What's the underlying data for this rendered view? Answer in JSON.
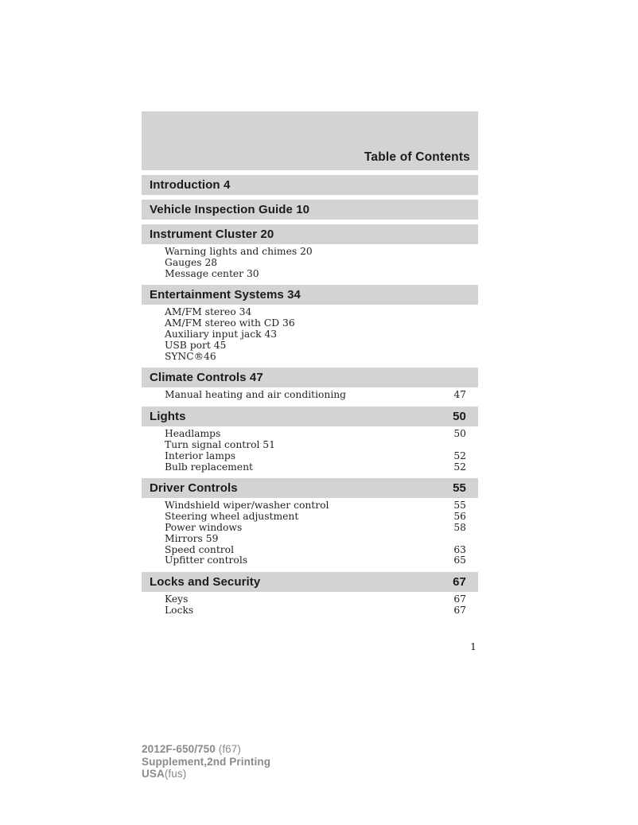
{
  "page": {
    "title": "Table of Contents",
    "page_number": "1"
  },
  "colors": {
    "bar_gray": "#d3d3d3",
    "footer_gray": "#8a8a8a"
  },
  "sections": [
    {
      "label": "Introduction 4",
      "page": "",
      "items": []
    },
    {
      "label": "Vehicle Inspection Guide 10",
      "page": "",
      "items": []
    },
    {
      "label": "Instrument Cluster 20",
      "page": "",
      "items": [
        {
          "label": "Warning lights and chimes 20",
          "page": ""
        },
        {
          "label": "Gauges 28",
          "page": ""
        },
        {
          "label": "Message center 30",
          "page": ""
        }
      ]
    },
    {
      "label": "Entertainment Systems 34",
      "page": "",
      "items": [
        {
          "label": "AM/FM stereo 34",
          "page": ""
        },
        {
          "label": "AM/FM stereo with CD 36",
          "page": ""
        },
        {
          "label": "Auxiliary input jack 43",
          "page": ""
        },
        {
          "label": "USB port 45",
          "page": ""
        },
        {
          "label": "SYNC®46",
          "page": ""
        }
      ]
    },
    {
      "label": "Climate Controls 47",
      "page": "",
      "items": [
        {
          "label": "Manual heating and air conditioning",
          "page": "47"
        }
      ]
    },
    {
      "label": "Lights",
      "page": "50",
      "items": [
        {
          "label": "Headlamps",
          "page": "50"
        },
        {
          "label": "Turn signal control 51",
          "page": ""
        },
        {
          "label": "Interior lamps",
          "page": "52"
        },
        {
          "label": "Bulb replacement",
          "page": "52"
        }
      ]
    },
    {
      "label": "Driver Controls",
      "page": "55",
      "items": [
        {
          "label": "Windshield wiper/washer control",
          "page": "55"
        },
        {
          "label": "Steering wheel adjustment",
          "page": "56"
        },
        {
          "label": "Power windows",
          "page": "58"
        },
        {
          "label": "Mirrors 59",
          "page": ""
        },
        {
          "label": "Speed control",
          "page": "63"
        },
        {
          "label": "Upfitter controls",
          "page": "65"
        }
      ]
    },
    {
      "label": "Locks and Security",
      "page": "67",
      "items": [
        {
          "label": "Keys",
          "page": "67"
        },
        {
          "label": "Locks",
          "page": "67"
        }
      ]
    }
  ],
  "footer": {
    "line1_bold": "2012F-650/750",
    "line1_light": " (f67)",
    "line2_bold": "Supplement,2nd Printing",
    "line3_bold": "USA",
    "line3_light": "(fus)"
  }
}
